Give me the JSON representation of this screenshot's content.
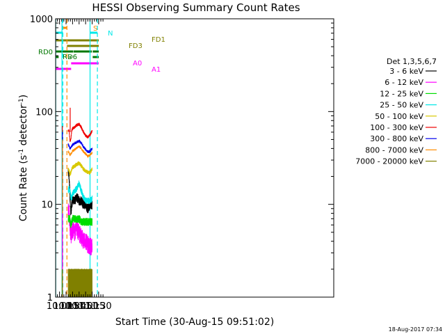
{
  "chart_data": {
    "type": "line",
    "title": "HESSI Observing Summary Count Rates",
    "xlabel": "Start Time (30-Aug-15 09:51:02)",
    "ylabel_main": "Count Rate (s",
    "ylabel_sup1": "-1",
    "ylabel_mid": " detector",
    "ylabel_sup2": "-1",
    "ylabel_end": ")",
    "yscale": "log",
    "xlim_min": [
      591,
      1231
    ],
    "ylim": [
      1,
      1000
    ],
    "x_ticks": [
      {
        "min": 600,
        "label": "10:00"
      },
      {
        "min": 615,
        "label": "10:15"
      },
      {
        "min": 630,
        "label": "10:30"
      },
      {
        "min": 645,
        "label": "10:45"
      },
      {
        "min": 660,
        "label": "11:00"
      },
      {
        "min": 675,
        "label": "11:15"
      },
      {
        "min": 690,
        "label": "11:30"
      }
    ],
    "y_ticks": [
      {
        "v": 1,
        "label": "1"
      },
      {
        "v": 10,
        "label": "10"
      },
      {
        "v": 100,
        "label": "100"
      },
      {
        "v": 1000,
        "label": "1000"
      }
    ],
    "legend": {
      "header": "Det 1,3,5,6,7",
      "entries": [
        {
          "label": "3 - 6 keV",
          "color": "#000000"
        },
        {
          "label": "6 - 12 keV",
          "color": "#ff00ff"
        },
        {
          "label": "12 - 25 keV",
          "color": "#00dd00"
        },
        {
          "label": "25 - 50 keV",
          "color": "#00e8e8"
        },
        {
          "label": "50 - 100 keV",
          "color": "#d8c800"
        },
        {
          "label": "100 - 300 keV",
          "color": "#ee0000"
        },
        {
          "label": "300 - 800 keV",
          "color": "#0000ee"
        },
        {
          "label": "800 - 7000 keV",
          "color": "#ff8c00"
        },
        {
          "label": "7000 - 20000 keV",
          "color": "#808000"
        }
      ]
    },
    "flag_bars": [
      {
        "label": "S",
        "color": "#ff8c00",
        "segments": [
          [
            605.9,
            616.9
          ]
        ]
      },
      {
        "label": "N",
        "color": "#00e8e8",
        "segments": [
          [
            591,
            607.7
          ],
          [
            670.2,
            687.1
          ]
        ]
      },
      {
        "label": "FD1",
        "color": "#808000",
        "segments": [
          [
            591,
            690.3
          ]
        ]
      },
      {
        "label": "FD3",
        "color": "#808000",
        "segments": [
          [
            617.2,
            690.3
          ]
        ]
      },
      {
        "label": "RD0",
        "color": "#007700",
        "segments": [
          [
            591,
            631.3
          ],
          [
            632.2,
            674.2
          ],
          [
            676.3,
            690.3
          ]
        ]
      },
      {
        "label": "RD6",
        "color": "#007700",
        "segments": [
          [
            591,
            597.9
          ],
          [
            622.9,
            625.9
          ],
          [
            676.3,
            690.3
          ]
        ]
      },
      {
        "label": "A0",
        "color": "#ff00ff",
        "segments": [
          [
            626.7,
            690.3
          ]
        ]
      },
      {
        "label": "A1",
        "color": "#ff00ff",
        "segments": [
          [
            591,
            626.7
          ]
        ]
      }
    ],
    "vertical_markers": [
      {
        "min": 591.2,
        "color": "#00e8e8",
        "style": "solid"
      },
      {
        "min": 605.6,
        "color": "#00e8e8",
        "style": "solid"
      },
      {
        "min": 607.7,
        "color": "#00e8e8",
        "style": "dashed"
      },
      {
        "min": 617.0,
        "color": "#ff8c00",
        "style": "dashed"
      },
      {
        "min": 670.2,
        "color": "#00e8e8",
        "style": "solid"
      },
      {
        "min": 687.1,
        "color": "#00e8e8",
        "style": "dashed"
      }
    ],
    "series": [
      {
        "name": "3 - 6 keV",
        "color": "#000000",
        "x": [
          620,
          622,
          624,
          626,
          628,
          630,
          635,
          640,
          645,
          650,
          655,
          660,
          665,
          670,
          675
        ],
        "y": [
          22,
          20,
          12,
          8,
          10,
          11,
          11,
          12,
          11,
          11,
          10,
          10,
          9,
          10,
          10
        ]
      },
      {
        "name": "6 - 12 keV",
        "color": "#ff00ff",
        "x": [
          620,
          622,
          624,
          626,
          628,
          630,
          635,
          640,
          645,
          650,
          655,
          660,
          665,
          670,
          675
        ],
        "y": [
          9,
          8,
          6,
          4.5,
          5,
          5.5,
          5,
          5.5,
          5,
          4.5,
          4.2,
          4,
          3.8,
          3.6,
          3.5
        ]
      },
      {
        "name": "12 - 25 keV",
        "color": "#00dd00",
        "x": [
          620,
          622,
          624,
          626,
          628,
          630,
          635,
          640,
          645,
          650,
          655,
          660,
          665,
          670,
          675
        ],
        "y": [
          7,
          7,
          7,
          6,
          6.5,
          7,
          7,
          7,
          7,
          6.5,
          6.5,
          6.5,
          6.5,
          6.5,
          6.5
        ]
      },
      {
        "name": "25 - 50 keV",
        "color": "#00e8e8",
        "x": [
          620,
          622,
          624,
          626,
          628,
          630,
          635,
          640,
          645,
          650,
          655,
          660,
          665,
          670,
          675
        ],
        "y": [
          14,
          15,
          14,
          12,
          12,
          13,
          14,
          15,
          17,
          14,
          12,
          11,
          11,
          11,
          11.5
        ]
      },
      {
        "name": "50 - 100 keV",
        "color": "#d8c800",
        "x": [
          620,
          622,
          624,
          626,
          628,
          630,
          635,
          640,
          645,
          650,
          655,
          660,
          665,
          670,
          675
        ],
        "y": [
          24,
          23,
          21,
          22,
          24,
          25,
          26,
          27,
          28,
          26,
          24,
          23,
          22,
          22,
          24
        ]
      },
      {
        "name": "100 - 300 keV",
        "color": "#ee0000",
        "x": [
          620,
          622,
          624,
          626,
          628,
          630,
          635,
          640,
          645,
          650,
          655,
          660,
          665,
          670,
          675
        ],
        "y": [
          62,
          62,
          48,
          50,
          62,
          66,
          68,
          72,
          73,
          68,
          60,
          55,
          53,
          56,
          62
        ]
      },
      {
        "name": "300 - 800 keV",
        "color": "#0000ee",
        "x": [
          620,
          622,
          624,
          626,
          628,
          630,
          635,
          640,
          645,
          650,
          655,
          660,
          665,
          670,
          675
        ],
        "y": [
          44,
          43,
          40,
          41,
          42,
          44,
          45,
          47,
          48,
          46,
          42,
          39,
          37,
          37,
          40
        ]
      },
      {
        "name": "800 - 7000 keV",
        "color": "#ff8c00",
        "x": [
          620,
          622,
          624,
          626,
          628,
          630,
          635,
          640,
          645,
          650,
          655,
          660,
          665,
          670,
          675
        ],
        "y": [
          37,
          36,
          34,
          35,
          36,
          38,
          39,
          41,
          42,
          40,
          37,
          35,
          33,
          34,
          36
        ]
      },
      {
        "name": "7000 - 20000 keV",
        "color": "#808000",
        "x": [
          620,
          622,
          624,
          626,
          628,
          630,
          635,
          640,
          645,
          650,
          655,
          660,
          665,
          670,
          675
        ],
        "y": [
          1.5,
          1.4,
          1.3,
          1.3,
          1.4,
          1.4,
          1.5,
          1.5,
          1.5,
          1.4,
          1.4,
          1.4,
          1.3,
          1.3,
          1.3
        ]
      }
    ]
  },
  "footer_timestamp": "18-Aug-2017 07:34"
}
